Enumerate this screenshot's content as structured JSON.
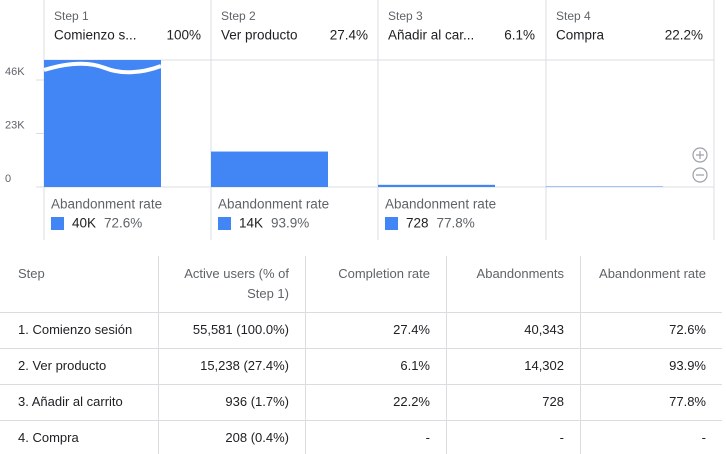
{
  "chart_data": {
    "type": "bar",
    "steps": [
      "Step 1",
      "Step 2",
      "Step 3",
      "Step 4"
    ],
    "categories": [
      "Comienzo s...",
      "Ver producto",
      "Añadir al car...",
      "Compra"
    ],
    "step_rates": [
      "100%",
      "27.4%",
      "6.1%",
      "22.2%"
    ],
    "values": [
      55581,
      15238,
      936,
      208
    ],
    "color": "#4285f4",
    "ylim": [
      0,
      54600
    ],
    "yticks": [
      0,
      {
        "value": 23000,
        "label": "23K"
      },
      {
        "value": 46000,
        "label": "46K"
      }
    ],
    "abandonment_title": "Abandonment rate",
    "abandonments": [
      {
        "count": "40K",
        "rate": "72.6%"
      },
      {
        "count": "14K",
        "rate": "93.9%"
      },
      {
        "count": "728",
        "rate": "77.8%"
      }
    ]
  },
  "table": {
    "headers": [
      "Step",
      "Active users (% of Step 1)",
      "Completion rate",
      "Abandonments",
      "Abandonment rate"
    ],
    "rows": [
      [
        "1. Comienzo sesión",
        "55,581 (100.0%)",
        "27.4%",
        "40,343",
        "72.6%"
      ],
      [
        "2. Ver producto",
        "15,238 (27.4%)",
        "6.1%",
        "14,302",
        "93.9%"
      ],
      [
        "3. Añadir al carrito",
        "936 (1.7%)",
        "22.2%",
        "728",
        "77.8%"
      ],
      [
        "4. Compra",
        "208 (0.4%)",
        "-",
        "-",
        "-"
      ]
    ]
  }
}
